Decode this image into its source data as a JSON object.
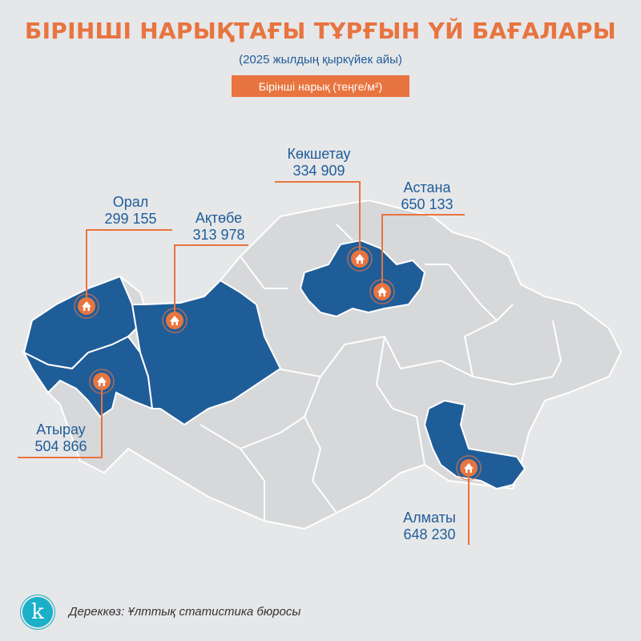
{
  "title": "БІРІНШІ НАРЫҚТАҒЫ ТҰРҒЫН ҮЙ БАҒАЛАРЫ",
  "subtitle": "(2025 жылдың қыркүйек айы)",
  "legend": "Бірінші нарық (теңге/м²)",
  "colors": {
    "background": "#e6e7e9",
    "region_default": "#d7d8da",
    "region_highlight": "#1f5d99",
    "accent": "#e8743f",
    "text": "#1f5d99"
  },
  "icon": "house-marker-icon",
  "cities": [
    {
      "name": "Орал",
      "price": "299 155"
    },
    {
      "name": "Ақтөбе",
      "price": "313 978"
    },
    {
      "name": "Көкшетау",
      "price": "334 909"
    },
    {
      "name": "Астана",
      "price": "650 133"
    },
    {
      "name": "Атырау",
      "price": "504 866"
    },
    {
      "name": "Алматы",
      "price": "648 230"
    }
  ],
  "source": "Дереккөз: Ұлттық статистика бюросы",
  "logo_letter": "k"
}
